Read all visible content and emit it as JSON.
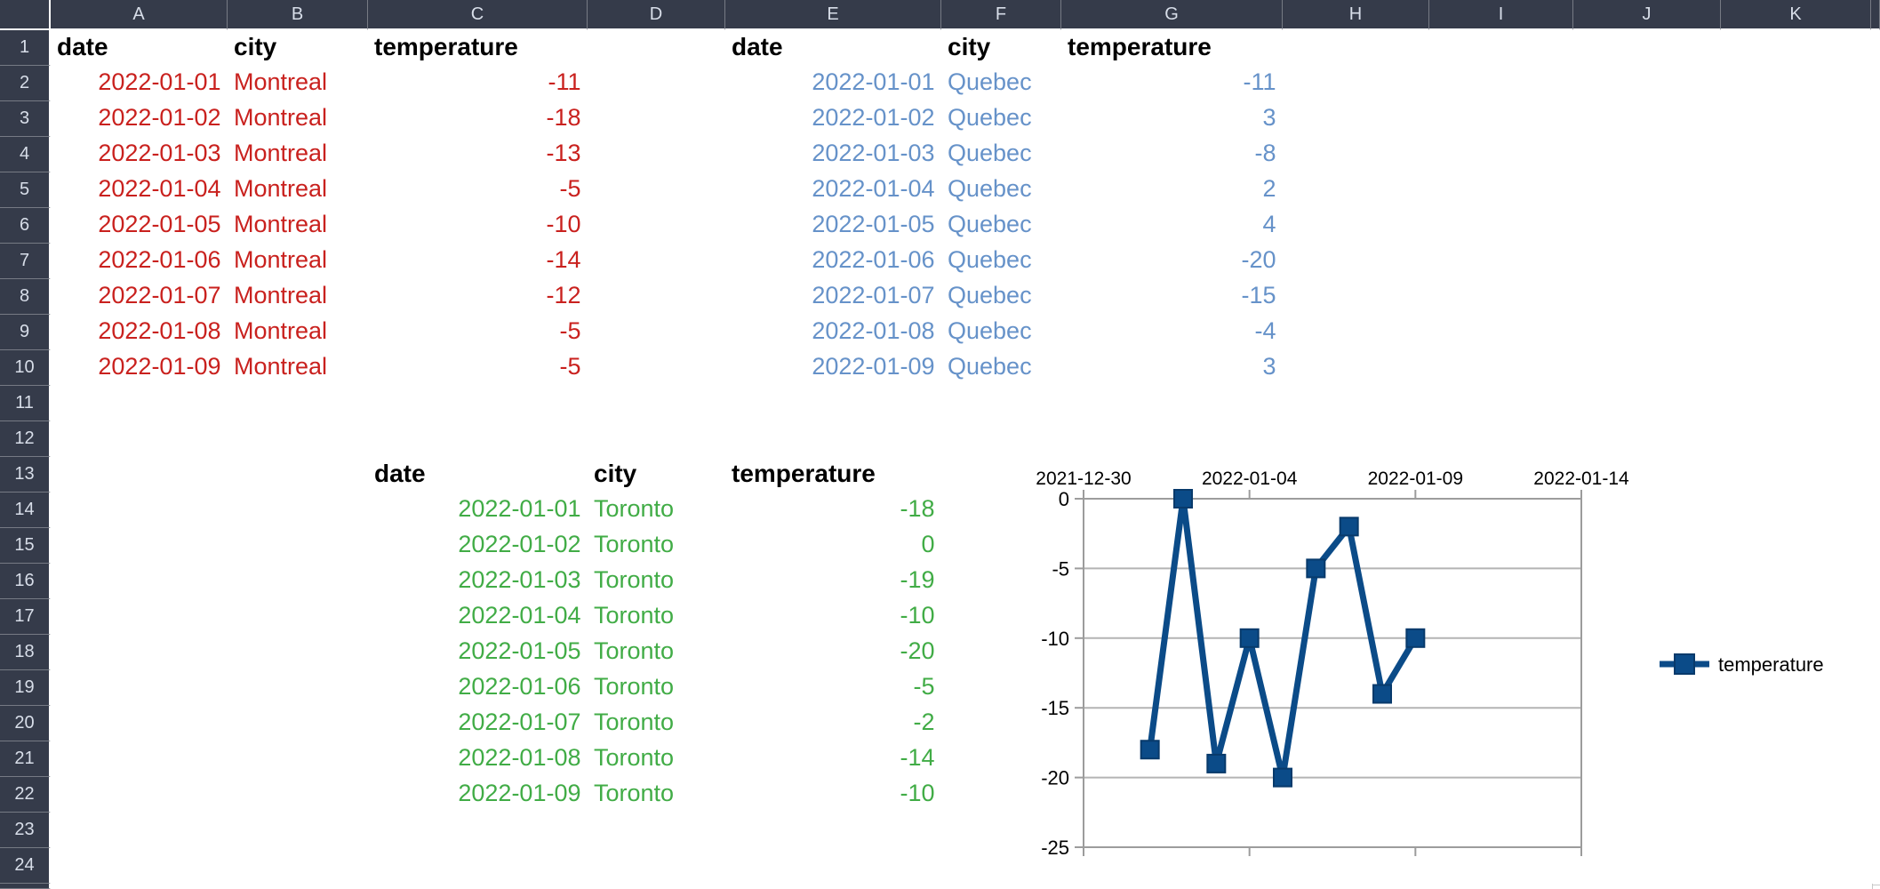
{
  "app": {
    "type": "spreadsheet-grid"
  },
  "grid": {
    "columns": [
      "A",
      "B",
      "C",
      "D",
      "E",
      "F",
      "G",
      "H",
      "I",
      "J",
      "K"
    ],
    "visible_rows": 24
  },
  "tables": [
    {
      "id": "montreal",
      "anchor": {
        "col": "A",
        "row": 1
      },
      "headers": [
        "date",
        "city",
        "temperature"
      ],
      "text_color": "#C9211E",
      "rows": [
        [
          "2022-01-01",
          "Montreal",
          "-11"
        ],
        [
          "2022-01-02",
          "Montreal",
          "-18"
        ],
        [
          "2022-01-03",
          "Montreal",
          "-13"
        ],
        [
          "2022-01-04",
          "Montreal",
          "-5"
        ],
        [
          "2022-01-05",
          "Montreal",
          "-10"
        ],
        [
          "2022-01-06",
          "Montreal",
          "-14"
        ],
        [
          "2022-01-07",
          "Montreal",
          "-12"
        ],
        [
          "2022-01-08",
          "Montreal",
          "-5"
        ],
        [
          "2022-01-09",
          "Montreal",
          "-5"
        ]
      ]
    },
    {
      "id": "quebec",
      "anchor": {
        "col": "E",
        "row": 1
      },
      "headers": [
        "date",
        "city",
        "temperature"
      ],
      "text_color": "#6692C9",
      "rows": [
        [
          "2022-01-01",
          "Quebec",
          "-11"
        ],
        [
          "2022-01-02",
          "Quebec",
          "3"
        ],
        [
          "2022-01-03",
          "Quebec",
          "-8"
        ],
        [
          "2022-01-04",
          "Quebec",
          "2"
        ],
        [
          "2022-01-05",
          "Quebec",
          "4"
        ],
        [
          "2022-01-06",
          "Quebec",
          "-20"
        ],
        [
          "2022-01-07",
          "Quebec",
          "-15"
        ],
        [
          "2022-01-08",
          "Quebec",
          "-4"
        ],
        [
          "2022-01-09",
          "Quebec",
          "3"
        ]
      ]
    },
    {
      "id": "toronto",
      "anchor": {
        "col": "C",
        "row": 13
      },
      "headers": [
        "date",
        "city",
        "temperature"
      ],
      "text_color": "#41AC46",
      "rows": [
        [
          "2022-01-01",
          "Toronto",
          "-18"
        ],
        [
          "2022-01-02",
          "Toronto",
          "0"
        ],
        [
          "2022-01-03",
          "Toronto",
          "-19"
        ],
        [
          "2022-01-04",
          "Toronto",
          "-10"
        ],
        [
          "2022-01-05",
          "Toronto",
          "-20"
        ],
        [
          "2022-01-06",
          "Toronto",
          "-5"
        ],
        [
          "2022-01-07",
          "Toronto",
          "-2"
        ],
        [
          "2022-01-08",
          "Toronto",
          "-14"
        ],
        [
          "2022-01-09",
          "Toronto",
          "-10"
        ]
      ]
    }
  ],
  "chart_data": {
    "type": "line",
    "title": "",
    "x": [
      "2022-01-01",
      "2022-01-02",
      "2022-01-03",
      "2022-01-04",
      "2022-01-05",
      "2022-01-06",
      "2022-01-07",
      "2022-01-08",
      "2022-01-09"
    ],
    "series": [
      {
        "name": "temperature",
        "color": "#0B4B88",
        "marker_stroke": "#083A6B",
        "values": [
          -18,
          0,
          -19,
          -10,
          -20,
          -5,
          -2,
          -14,
          -10
        ]
      }
    ],
    "x_axis": {
      "position": "top",
      "range": [
        "2021-12-30",
        "2022-01-14"
      ],
      "tick_labels": [
        "2021-12-30",
        "2022-01-04",
        "2022-01-09",
        "2022-01-14"
      ]
    },
    "y_axis": {
      "min": -25,
      "max": 0,
      "tick_labels": [
        "0",
        "-5",
        "-10",
        "-15",
        "-20",
        "-25"
      ]
    },
    "grid": true,
    "legend_position": "right",
    "marker": "square"
  },
  "colors": {
    "header_bg": "#353B4A",
    "header_text": "#D8DEE9",
    "gridline": "#C8C8C8",
    "cell_bg": "#FFFFFF",
    "table_header_text": "#000000",
    "chart_plot_border": "#9C9C9C",
    "chart_gridline": "#B4B4B4",
    "chart_tick": "#9C9C9C"
  }
}
